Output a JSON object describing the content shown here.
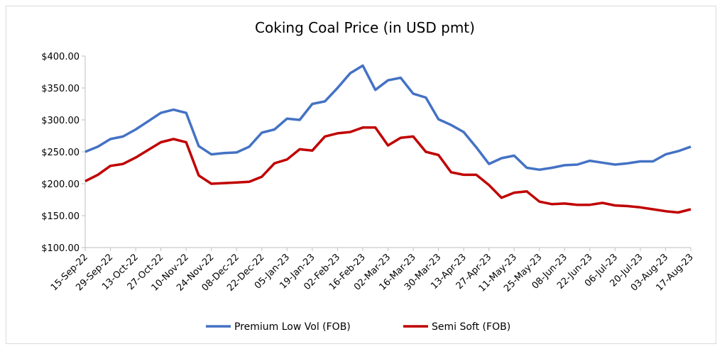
{
  "chart_data": {
    "type": "line",
    "title": "Coking Coal Price (in USD pmt)",
    "categories": [
      "15-Sep-22",
      null,
      "29-Sep-22",
      null,
      "13-Oct-22",
      null,
      "27-Oct-22",
      null,
      "10-Nov-22",
      null,
      "24-Nov-22",
      null,
      "08-Dec-22",
      null,
      "22-Dec-22",
      null,
      "05-Jan-23",
      null,
      "19-Jan-23",
      null,
      "02-Feb-23",
      null,
      "16-Feb-23",
      null,
      "02-Mar-23",
      null,
      "16-Mar-23",
      null,
      "30-Mar-23",
      null,
      "13-Apr-23",
      null,
      "27-Apr-23",
      null,
      "11-May-23",
      null,
      "25-May-23",
      null,
      "08-Jun-23",
      null,
      "22-Jun-23",
      null,
      "06-Jul-23",
      null,
      "20-Jul-23",
      null,
      "03-Aug-23",
      null,
      "17-Aug-23"
    ],
    "series": [
      {
        "name": "Premium Low Vol (FOB)",
        "color": "#4472c4",
        "values": [
          250,
          258,
          270,
          274,
          285,
          298,
          311,
          316,
          311,
          259,
          246,
          248,
          249,
          258,
          280,
          285,
          302,
          300,
          325,
          329,
          350,
          373,
          385,
          347,
          362,
          366,
          341,
          335,
          301,
          292,
          281,
          257,
          231,
          240,
          244,
          225,
          222,
          225,
          229,
          230,
          236,
          233,
          230,
          232,
          235,
          235,
          246,
          251,
          258
        ]
      },
      {
        "name": "Semi Soft (FOB)",
        "color": "#c00000",
        "values": [
          204,
          214,
          228,
          231,
          241,
          253,
          265,
          270,
          265,
          213,
          200,
          201,
          202,
          203,
          211,
          232,
          238,
          254,
          252,
          274,
          279,
          281,
          288,
          288,
          260,
          272,
          274,
          250,
          245,
          218,
          214,
          214,
          198,
          178,
          186,
          188,
          172,
          168,
          169,
          167,
          167,
          170,
          166,
          165,
          163,
          160,
          157,
          155,
          160
        ]
      }
    ],
    "ylim": [
      100,
      400
    ],
    "yticks": [
      {
        "value": 100,
        "label": "$100.00"
      },
      {
        "value": 150,
        "label": "$150.00"
      },
      {
        "value": 200,
        "label": "$200.00"
      },
      {
        "value": 250,
        "label": "$250.00"
      },
      {
        "value": 300,
        "label": "$300.00"
      },
      {
        "value": 350,
        "label": "$350.00"
      },
      {
        "value": 400,
        "label": "$400.00"
      }
    ],
    "legend": "bottom"
  }
}
